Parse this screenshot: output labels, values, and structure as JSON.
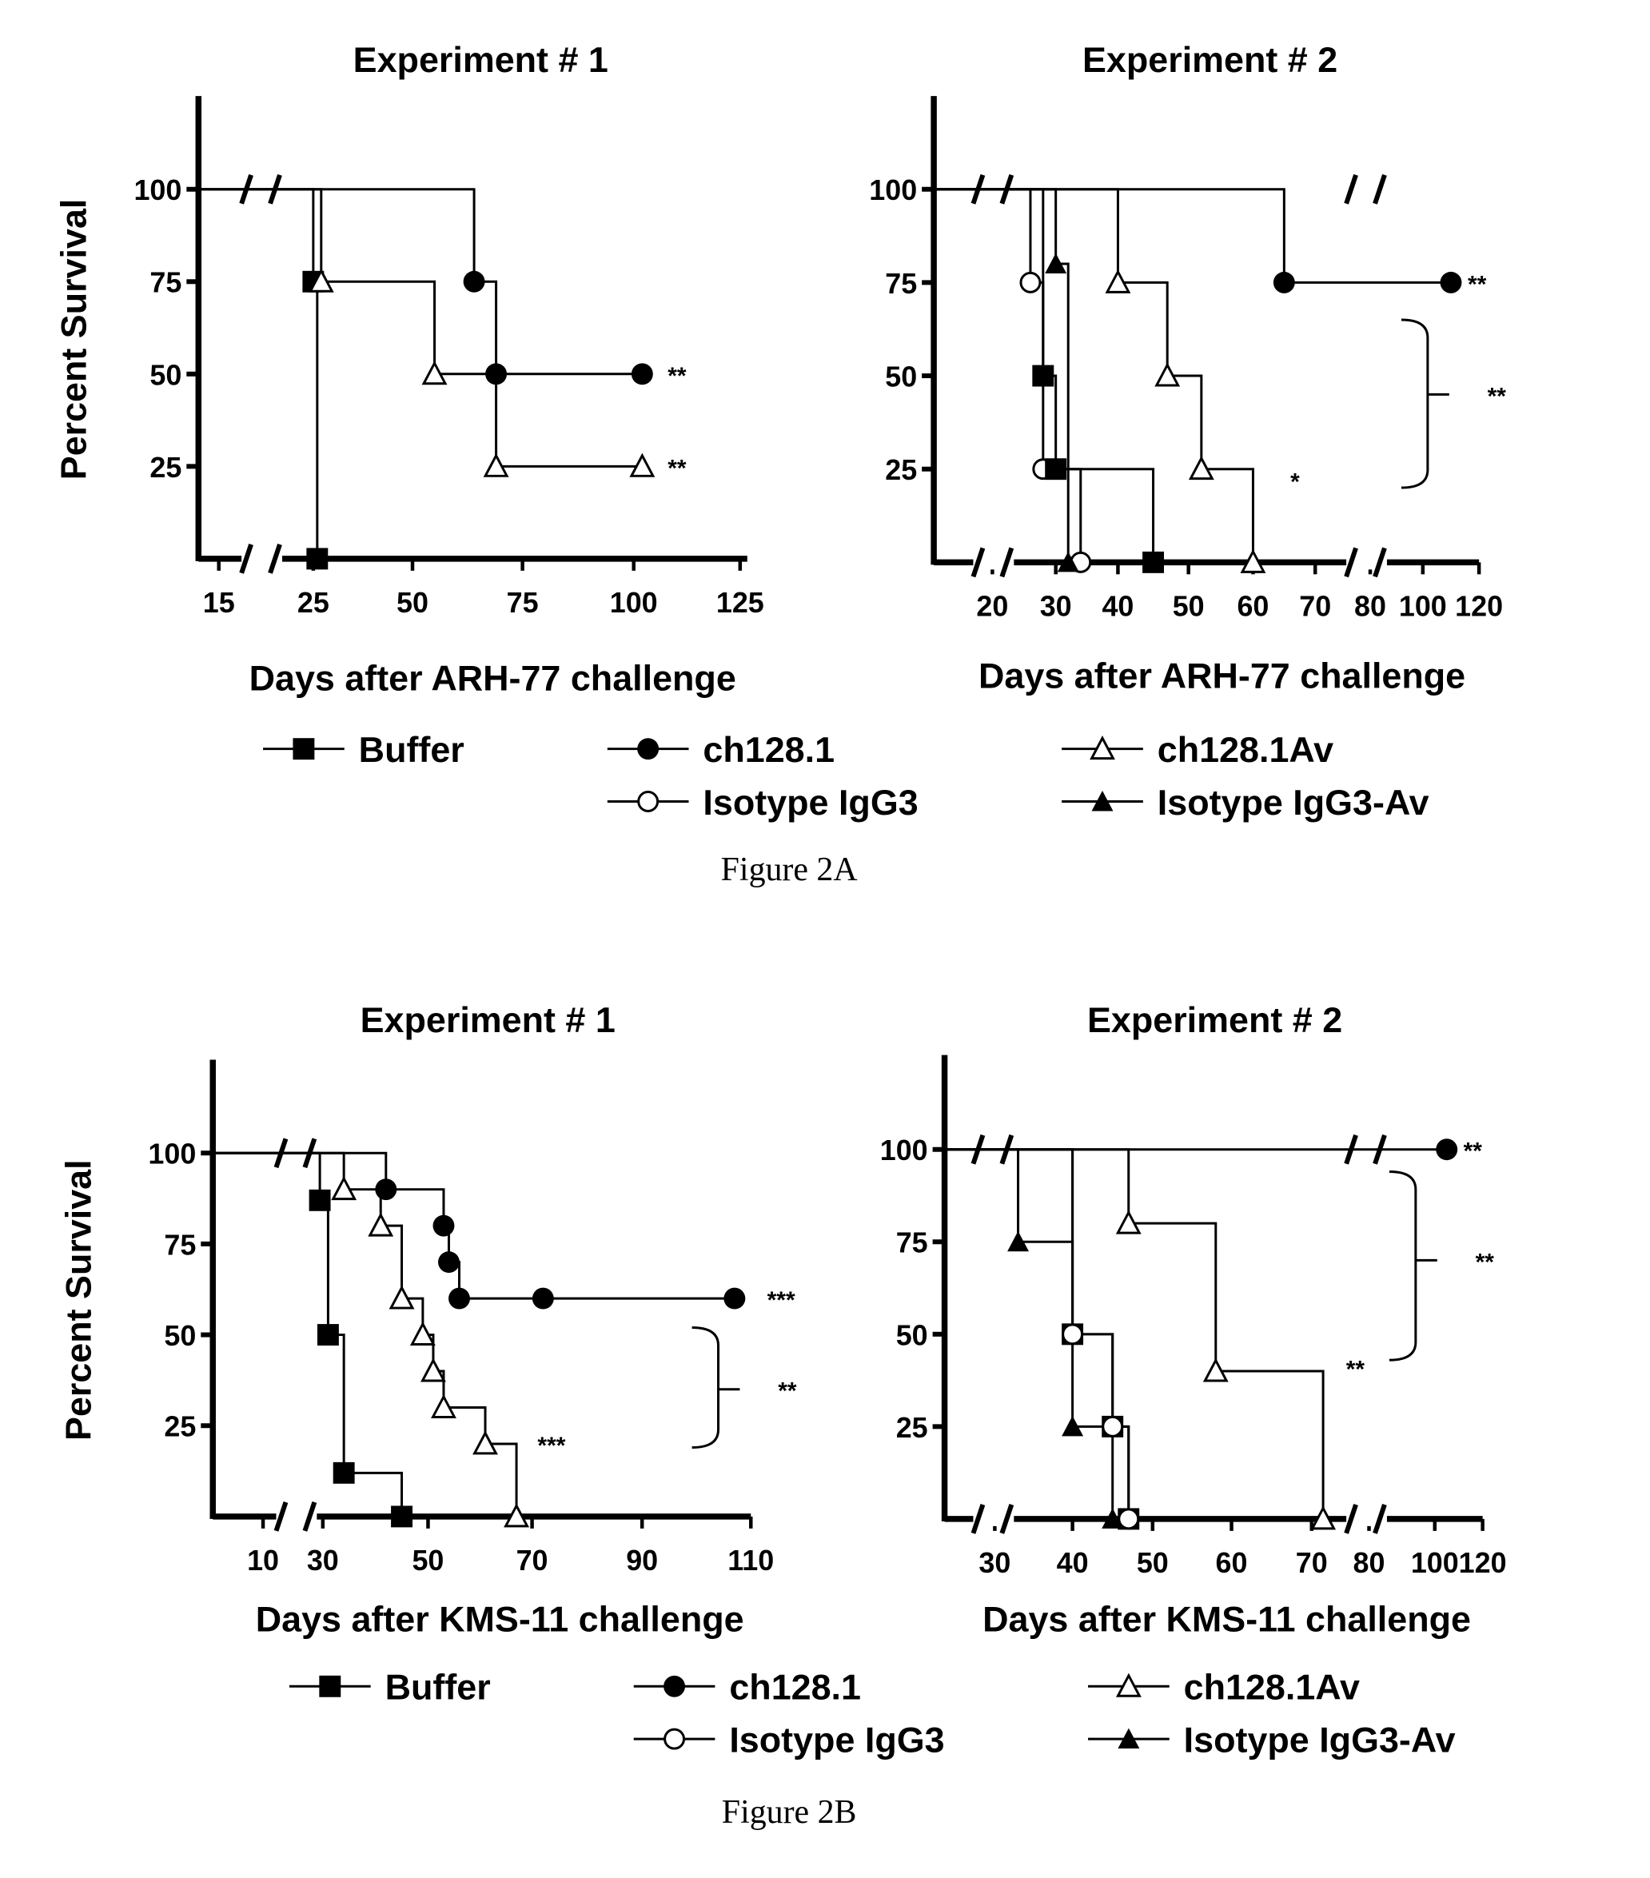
{
  "captions": {
    "fig_a": "Figure 2A",
    "fig_b": "Figure 2B"
  },
  "legend": [
    {
      "label": "Buffer",
      "marker": "filled-square"
    },
    {
      "label": "ch128.1",
      "marker": "filled-circle"
    },
    {
      "label": "ch128.1Av",
      "marker": "open-triangle"
    },
    {
      "label": "Isotype IgG3",
      "marker": "open-circle"
    },
    {
      "label": "Isotype IgG3-Av",
      "marker": "filled-triangle"
    }
  ],
  "chart_data": [
    {
      "type": "line",
      "step": true,
      "figure": "2A",
      "title": "Experiment # 1",
      "xlabel": "Days after ARH-77 challenge",
      "ylabel": "Percent Survival",
      "xticks": [
        "15",
        "25",
        "50",
        "75",
        "100",
        "125"
      ],
      "yticks": [
        "100",
        "75",
        "50",
        "25"
      ],
      "ylim": [
        0,
        100
      ],
      "x_break": true,
      "series": [
        {
          "name": "Buffer",
          "marker": "filled-square",
          "points": [
            [
              25,
              75
            ],
            [
              26,
              0
            ]
          ]
        },
        {
          "name": "ch128.1",
          "marker": "filled-circle",
          "points": [
            [
              64,
              75
            ],
            [
              69,
              50
            ],
            [
              102,
              50
            ]
          ]
        },
        {
          "name": "ch128.1Av",
          "marker": "open-triangle",
          "points": [
            [
              27,
              75
            ],
            [
              55,
              50
            ],
            [
              69,
              25
            ],
            [
              102,
              25
            ]
          ]
        }
      ],
      "annotations": [
        {
          "text": "**",
          "x": 108,
          "y": 50
        },
        {
          "text": "**",
          "x": 108,
          "y": 25
        }
      ]
    },
    {
      "type": "line",
      "step": true,
      "figure": "2A",
      "title": "Experiment # 2",
      "xlabel": "Days after ARH-77 challenge",
      "ylabel": "",
      "xticks": [
        "20",
        "30",
        "40",
        "50",
        "60",
        "70",
        "80",
        "100",
        "120"
      ],
      "yticks": [
        "100",
        "75",
        "50",
        "25"
      ],
      "ylim": [
        0,
        100
      ],
      "x_break": true,
      "series": [
        {
          "name": "Isotype IgG3",
          "marker": "open-circle",
          "points": [
            [
              26,
              75
            ],
            [
              28,
              25
            ],
            [
              34,
              0
            ]
          ]
        },
        {
          "name": "Buffer",
          "marker": "filled-square",
          "points": [
            [
              28,
              50
            ],
            [
              30,
              25
            ],
            [
              45,
              0
            ]
          ]
        },
        {
          "name": "Isotype IgG3-Av",
          "marker": "filled-triangle",
          "points": [
            [
              30,
              80
            ],
            [
              32,
              0
            ]
          ]
        },
        {
          "name": "ch128.1Av",
          "marker": "open-triangle",
          "points": [
            [
              40,
              75
            ],
            [
              47,
              50
            ],
            [
              52,
              25
            ],
            [
              60,
              0
            ]
          ]
        },
        {
          "name": "ch128.1",
          "marker": "filled-circle",
          "points": [
            [
              65,
              75
            ],
            [
              110,
              75
            ]
          ]
        }
      ],
      "annotations": [
        {
          "text": "**",
          "x": 116,
          "y": 75
        },
        {
          "text": "*",
          "x": 66,
          "y": 22
        },
        {
          "text": "**",
          "bracket": [
            65,
            20
          ],
          "x": 123,
          "y": 45
        }
      ]
    },
    {
      "type": "line",
      "step": true,
      "figure": "2B",
      "title": "Experiment # 1",
      "xlabel": "Days after KMS-11 challenge",
      "ylabel": "Percent Survival",
      "xticks": [
        "10",
        "30",
        "50",
        "70",
        "90",
        "110"
      ],
      "yticks": [
        "100",
        "75",
        "50",
        "25"
      ],
      "ylim": [
        0,
        100
      ],
      "x_break": true,
      "series": [
        {
          "name": "Buffer",
          "marker": "filled-square",
          "points": [
            [
              29,
              87
            ],
            [
              31,
              50
            ],
            [
              34,
              12
            ],
            [
              45,
              0
            ]
          ]
        },
        {
          "name": "ch128.1",
          "marker": "filled-circle",
          "points": [
            [
              42,
              90
            ],
            [
              53,
              80
            ],
            [
              54,
              70
            ],
            [
              56,
              60
            ],
            [
              72,
              60
            ],
            [
              107,
              60
            ]
          ]
        },
        {
          "name": "ch128.1Av",
          "marker": "open-triangle",
          "points": [
            [
              34,
              90
            ],
            [
              41,
              80
            ],
            [
              45,
              60
            ],
            [
              49,
              50
            ],
            [
              51,
              40
            ],
            [
              53,
              30
            ],
            [
              61,
              20
            ],
            [
              67,
              0
            ]
          ]
        }
      ],
      "annotations": [
        {
          "text": "***",
          "x": 113,
          "y": 60
        },
        {
          "text": "***",
          "x": 71,
          "y": 20
        },
        {
          "text": "**",
          "bracket": [
            52,
            19
          ],
          "x": 115,
          "y": 35
        }
      ]
    },
    {
      "type": "line",
      "step": true,
      "figure": "2B",
      "title": "Experiment # 2",
      "xlabel": "Days after KMS-11 challenge",
      "ylabel": "",
      "xticks": [
        "30",
        "40",
        "50",
        "60",
        "70",
        "80",
        "100",
        "120"
      ],
      "yticks": [
        "100",
        "75",
        "50",
        "25"
      ],
      "ylim": [
        0,
        100
      ],
      "x_break": true,
      "series": [
        {
          "name": "Isotype IgG3-Av",
          "marker": "filled-triangle",
          "points": [
            [
              33,
              75
            ],
            [
              40,
              25
            ],
            [
              45,
              0
            ]
          ]
        },
        {
          "name": "Buffer",
          "marker": "filled-square",
          "points": [
            [
              40,
              50
            ],
            [
              45,
              25
            ],
            [
              47,
              0
            ]
          ]
        },
        {
          "name": "Isotype IgG3",
          "marker": "open-circle",
          "points": [
            [
              40,
              50
            ],
            [
              45,
              25
            ],
            [
              47,
              0
            ]
          ]
        },
        {
          "name": "ch128.1Av",
          "marker": "open-triangle",
          "points": [
            [
              47,
              80
            ],
            [
              58,
              40
            ],
            [
              72,
              0
            ]
          ]
        },
        {
          "name": "ch128.1",
          "marker": "filled-circle",
          "points": [
            [
              105,
              100
            ]
          ]
        }
      ],
      "annotations": [
        {
          "text": "**",
          "x": 112,
          "y": 100
        },
        {
          "text": "**",
          "x": 76,
          "y": 41
        },
        {
          "text": "**",
          "bracket": [
            94,
            43
          ],
          "x": 117,
          "y": 70
        }
      ]
    }
  ]
}
